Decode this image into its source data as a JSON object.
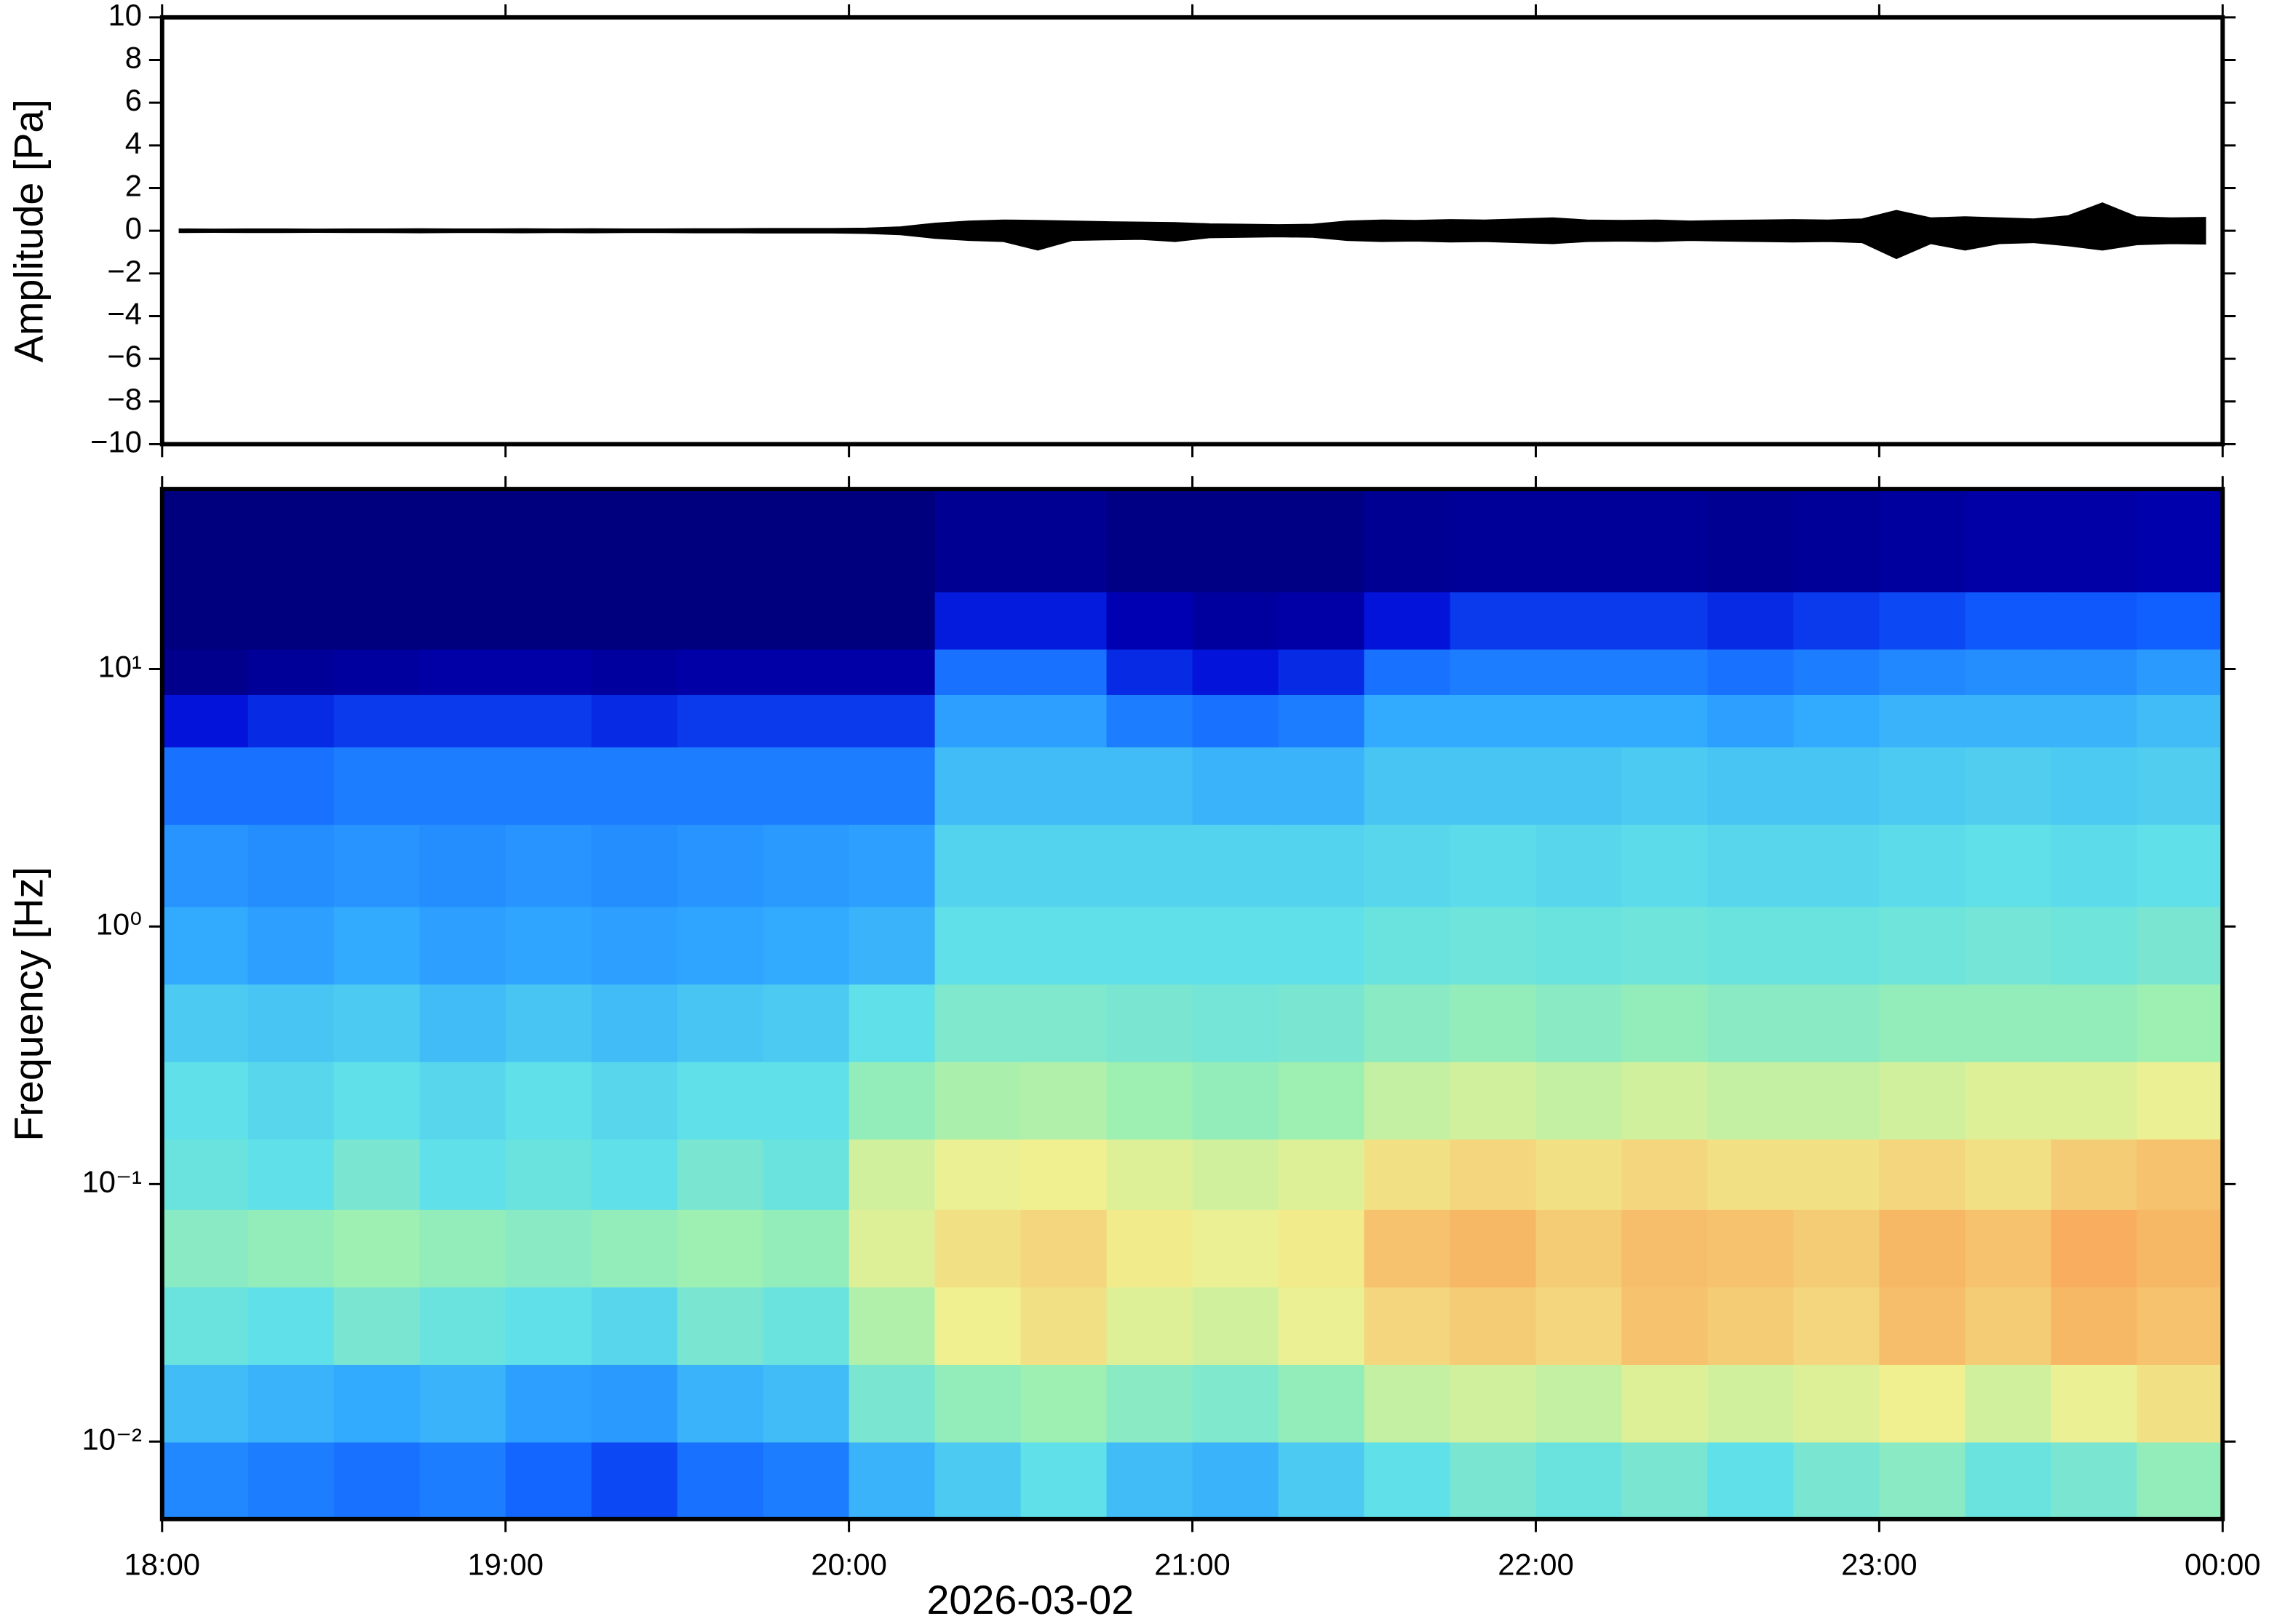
{
  "chart_data": [
    {
      "type": "waveform",
      "ylabel": "Amplitude [Pa]",
      "color": "#000000",
      "x": [
        18.05,
        18.15,
        18.25,
        18.35,
        18.45,
        18.55,
        18.65,
        18.75,
        18.85,
        18.95,
        19.05,
        19.15,
        19.25,
        19.35,
        19.45,
        19.55,
        19.65,
        19.75,
        19.85,
        19.95,
        20.05,
        20.15,
        20.25,
        20.35,
        20.45,
        20.55,
        20.65,
        20.75,
        20.85,
        20.95,
        21.05,
        21.15,
        21.25,
        21.35,
        21.45,
        21.55,
        21.65,
        21.75,
        21.85,
        21.95,
        22.05,
        22.15,
        22.25,
        22.35,
        22.45,
        22.55,
        22.65,
        22.75,
        22.85,
        22.95,
        23.05,
        23.15,
        23.25,
        23.35,
        23.45,
        23.55,
        23.65,
        23.75,
        23.85,
        23.95
      ],
      "max": [
        0.08,
        0.07,
        0.08,
        0.08,
        0.07,
        0.08,
        0.08,
        0.09,
        0.08,
        0.08,
        0.09,
        0.08,
        0.09,
        0.08,
        0.08,
        0.09,
        0.09,
        0.1,
        0.1,
        0.1,
        0.12,
        0.18,
        0.35,
        0.45,
        0.5,
        0.48,
        0.45,
        0.42,
        0.4,
        0.38,
        0.32,
        0.3,
        0.28,
        0.3,
        0.45,
        0.5,
        0.48,
        0.52,
        0.5,
        0.55,
        0.6,
        0.5,
        0.48,
        0.5,
        0.45,
        0.48,
        0.5,
        0.52,
        0.5,
        0.55,
        0.95,
        0.6,
        0.65,
        0.6,
        0.55,
        0.7,
        1.3,
        0.65,
        0.6,
        0.62
      ],
      "min": [
        -0.08,
        -0.07,
        -0.08,
        -0.08,
        -0.07,
        -0.08,
        -0.08,
        -0.09,
        -0.08,
        -0.08,
        -0.09,
        -0.08,
        -0.09,
        -0.08,
        -0.08,
        -0.09,
        -0.09,
        -0.1,
        -0.1,
        -0.1,
        -0.12,
        -0.18,
        -0.35,
        -0.45,
        -0.5,
        -0.9,
        -0.45,
        -0.42,
        -0.4,
        -0.5,
        -0.32,
        -0.3,
        -0.28,
        -0.3,
        -0.45,
        -0.5,
        -0.48,
        -0.52,
        -0.5,
        -0.55,
        -0.6,
        -0.5,
        -0.48,
        -0.5,
        -0.45,
        -0.48,
        -0.5,
        -0.52,
        -0.5,
        -0.55,
        -1.3,
        -0.6,
        -0.9,
        -0.6,
        -0.55,
        -0.7,
        -0.9,
        -0.65,
        -0.6,
        -0.62
      ],
      "xlim": [
        18,
        24
      ],
      "xticks": [
        18,
        19,
        20,
        21,
        22,
        23,
        24
      ],
      "ylim": [
        -10,
        10
      ],
      "yticks": [
        {
          "value": -10,
          "label": "−10"
        },
        {
          "value": -8,
          "label": "−8"
        },
        {
          "value": -6,
          "label": "−6"
        },
        {
          "value": -4,
          "label": "−4"
        },
        {
          "value": -2,
          "label": "−2"
        },
        0,
        2,
        4,
        6,
        8,
        10
      ]
    },
    {
      "type": "heatmap",
      "ylabel": "Frequency [Hz]",
      "xlabel": "2026-03-02",
      "ylog": true,
      "xedges": [
        18,
        18.25,
        18.5,
        18.75,
        19,
        19.25,
        19.5,
        19.75,
        20,
        20.25,
        20.5,
        20.75,
        21,
        21.25,
        21.5,
        21.75,
        22,
        22.25,
        22.5,
        22.75,
        23,
        23.25,
        23.5,
        23.75,
        24
      ],
      "yedges": [
        0.005,
        0.01,
        0.02,
        0.04,
        0.08,
        0.15,
        0.3,
        0.6,
        1.2,
        2.5,
        5,
        8,
        12,
        20,
        50
      ],
      "zlim": [
        0,
        1
      ],
      "colorscale": [
        "#00007f",
        "#0000d0",
        "#1060ff",
        "#30a8ff",
        "#60e0e8",
        "#a0f0b0",
        "#f0f090",
        "#f8b060",
        "#f06050"
      ],
      "z": [
        [
          0.32,
          0.3,
          0.28,
          0.3,
          0.26,
          0.22,
          0.28,
          0.3,
          0.4,
          0.45,
          0.5,
          0.42,
          0.4,
          0.45,
          0.5,
          0.55,
          0.52,
          0.55,
          0.5,
          0.55,
          0.58,
          0.52,
          0.55,
          0.6
        ],
        [
          0.42,
          0.4,
          0.38,
          0.4,
          0.36,
          0.35,
          0.4,
          0.42,
          0.55,
          0.6,
          0.62,
          0.58,
          0.56,
          0.6,
          0.68,
          0.7,
          0.68,
          0.72,
          0.7,
          0.72,
          0.75,
          0.7,
          0.74,
          0.78
        ],
        [
          0.52,
          0.5,
          0.55,
          0.52,
          0.5,
          0.48,
          0.55,
          0.52,
          0.65,
          0.75,
          0.78,
          0.72,
          0.7,
          0.74,
          0.8,
          0.82,
          0.8,
          0.84,
          0.82,
          0.8,
          0.85,
          0.82,
          0.86,
          0.84
        ],
        [
          0.58,
          0.6,
          0.62,
          0.6,
          0.58,
          0.6,
          0.62,
          0.6,
          0.72,
          0.78,
          0.8,
          0.76,
          0.74,
          0.76,
          0.84,
          0.86,
          0.82,
          0.85,
          0.84,
          0.82,
          0.86,
          0.84,
          0.88,
          0.86
        ],
        [
          0.52,
          0.5,
          0.55,
          0.5,
          0.52,
          0.5,
          0.55,
          0.52,
          0.7,
          0.74,
          0.75,
          0.72,
          0.7,
          0.72,
          0.78,
          0.8,
          0.78,
          0.8,
          0.78,
          0.78,
          0.8,
          0.78,
          0.82,
          0.84
        ],
        [
          0.5,
          0.48,
          0.5,
          0.48,
          0.5,
          0.48,
          0.5,
          0.5,
          0.6,
          0.64,
          0.65,
          0.62,
          0.6,
          0.62,
          0.68,
          0.7,
          0.68,
          0.7,
          0.68,
          0.68,
          0.7,
          0.72,
          0.72,
          0.74
        ],
        [
          0.45,
          0.44,
          0.45,
          0.42,
          0.44,
          0.42,
          0.44,
          0.45,
          0.5,
          0.56,
          0.56,
          0.55,
          0.54,
          0.55,
          0.58,
          0.6,
          0.58,
          0.6,
          0.58,
          0.58,
          0.6,
          0.6,
          0.6,
          0.62
        ],
        [
          0.38,
          0.36,
          0.38,
          0.36,
          0.37,
          0.36,
          0.37,
          0.38,
          0.4,
          0.5,
          0.5,
          0.5,
          0.5,
          0.5,
          0.52,
          0.53,
          0.52,
          0.53,
          0.52,
          0.52,
          0.53,
          0.54,
          0.53,
          0.55
        ],
        [
          0.34,
          0.33,
          0.34,
          0.33,
          0.34,
          0.33,
          0.34,
          0.35,
          0.36,
          0.47,
          0.47,
          0.47,
          0.47,
          0.47,
          0.48,
          0.49,
          0.48,
          0.49,
          0.48,
          0.48,
          0.49,
          0.5,
          0.49,
          0.5
        ],
        [
          0.28,
          0.28,
          0.3,
          0.3,
          0.3,
          0.3,
          0.3,
          0.3,
          0.3,
          0.42,
          0.42,
          0.42,
          0.4,
          0.4,
          0.44,
          0.44,
          0.44,
          0.45,
          0.44,
          0.44,
          0.45,
          0.46,
          0.45,
          0.46
        ],
        [
          0.15,
          0.18,
          0.2,
          0.2,
          0.2,
          0.18,
          0.2,
          0.2,
          0.2,
          0.36,
          0.36,
          0.3,
          0.28,
          0.3,
          0.38,
          0.38,
          0.38,
          0.38,
          0.36,
          0.38,
          0.4,
          0.4,
          0.4,
          0.42
        ],
        [
          0.02,
          0.04,
          0.05,
          0.06,
          0.06,
          0.05,
          0.06,
          0.06,
          0.06,
          0.28,
          0.28,
          0.18,
          0.15,
          0.18,
          0.28,
          0.3,
          0.3,
          0.3,
          0.28,
          0.3,
          0.32,
          0.33,
          0.33,
          0.35
        ],
        [
          0,
          0,
          0,
          0,
          0,
          0,
          0,
          0,
          0,
          0.16,
          0.16,
          0.08,
          0.05,
          0.06,
          0.15,
          0.2,
          0.2,
          0.2,
          0.18,
          0.2,
          0.22,
          0.24,
          0.24,
          0.25
        ],
        [
          0,
          0,
          0,
          0,
          0,
          0,
          0,
          0,
          0,
          0.03,
          0.03,
          0.01,
          0.01,
          0.01,
          0.03,
          0.04,
          0.04,
          0.04,
          0.03,
          0.04,
          0.05,
          0.06,
          0.06,
          0.07
        ]
      ],
      "xlim": [
        18,
        24
      ],
      "xticks": [
        {
          "value": 18,
          "label": "18:00"
        },
        {
          "value": 19,
          "label": "19:00"
        },
        {
          "value": 20,
          "label": "20:00"
        },
        {
          "value": 21,
          "label": "21:00"
        },
        {
          "value": 22,
          "label": "22:00"
        },
        {
          "value": 23,
          "label": "23:00"
        },
        {
          "value": 24,
          "label": "00:00"
        }
      ],
      "ylim": [
        0.005,
        50
      ],
      "yticks": [
        {
          "value": 0.01,
          "label": "10⁻²"
        },
        {
          "value": 0.1,
          "label": "10⁻¹"
        },
        {
          "value": 1,
          "label": "10⁰"
        },
        {
          "value": 10,
          "label": "10¹"
        }
      ]
    }
  ]
}
